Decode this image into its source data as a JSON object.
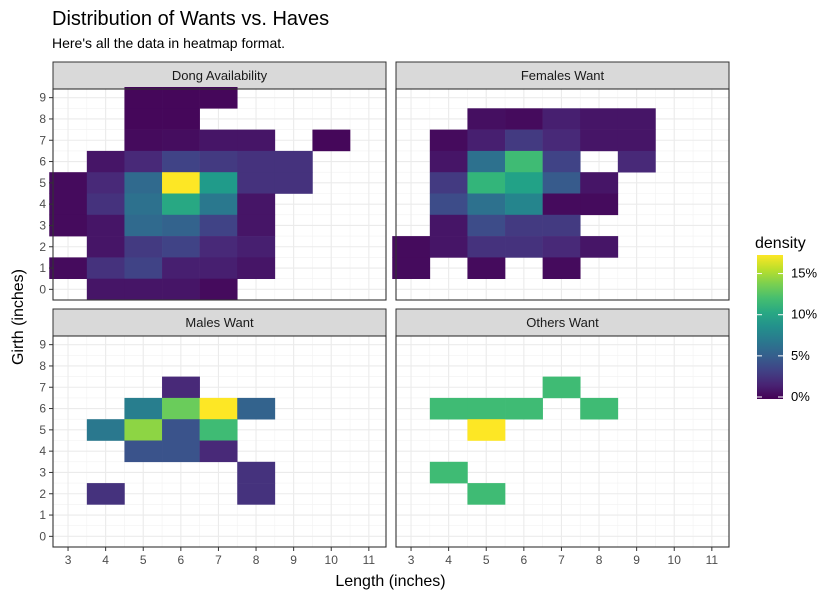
{
  "chart_data": {
    "type": "heatmap",
    "title": "Distribution of Wants vs. Haves",
    "subtitle": "Here's all the data in heatmap format.",
    "xlabel": "Length (inches)",
    "ylabel": "Girth (inches)",
    "xlim": [
      3,
      11
    ],
    "ylim": [
      0,
      9
    ],
    "x_ticks": [
      "3",
      "4",
      "5",
      "6",
      "7",
      "8",
      "9",
      "10",
      "11"
    ],
    "y_ticks": [
      "0",
      "1",
      "2",
      "3",
      "4",
      "5",
      "6",
      "7",
      "8",
      "9"
    ],
    "grid": true,
    "color_scale": "viridis",
    "legend": {
      "title": "density",
      "position": "right",
      "max": 17.5,
      "labels": [
        "0%",
        "5%",
        "10%",
        "15%"
      ],
      "values": [
        0,
        5,
        10,
        15
      ]
    },
    "facets": [
      {
        "name": "Dong Availability",
        "cells": [
          [
            5,
            9,
            0.3
          ],
          [
            6,
            9,
            0.3
          ],
          [
            7,
            9,
            0.3
          ],
          [
            5,
            8,
            0.3
          ],
          [
            6,
            8,
            0.3
          ],
          [
            5,
            7,
            0.5
          ],
          [
            6,
            7,
            0.6
          ],
          [
            7,
            7,
            1.0
          ],
          [
            8,
            7,
            1.0
          ],
          [
            10,
            7,
            0.3
          ],
          [
            4,
            6,
            1.0
          ],
          [
            5,
            6,
            2.0
          ],
          [
            6,
            6,
            3.5
          ],
          [
            7,
            6,
            3.0
          ],
          [
            8,
            6,
            2.5
          ],
          [
            9,
            6,
            2.5
          ],
          [
            3,
            5,
            0.5
          ],
          [
            4,
            5,
            2.0
          ],
          [
            5,
            5,
            6.0
          ],
          [
            6,
            5,
            17.5
          ],
          [
            7,
            5,
            9.5
          ],
          [
            8,
            5,
            2.5
          ],
          [
            9,
            5,
            2.5
          ],
          [
            3,
            4,
            0.5
          ],
          [
            4,
            4,
            2.5
          ],
          [
            5,
            4,
            6.5
          ],
          [
            6,
            4,
            10.5
          ],
          [
            7,
            4,
            7.0
          ],
          [
            8,
            4,
            1.0
          ],
          [
            3,
            3,
            0.5
          ],
          [
            4,
            3,
            1.0
          ],
          [
            5,
            3,
            6.0
          ],
          [
            6,
            3,
            5.5
          ],
          [
            7,
            3,
            3.5
          ],
          [
            8,
            3,
            1.0
          ],
          [
            4,
            2,
            1.0
          ],
          [
            5,
            2,
            3.0
          ],
          [
            6,
            2,
            3.5
          ],
          [
            7,
            2,
            2.0
          ],
          [
            8,
            2,
            1.5
          ],
          [
            3,
            1,
            0.5
          ],
          [
            4,
            1,
            2.5
          ],
          [
            5,
            1,
            3.5
          ],
          [
            6,
            1,
            1.5
          ],
          [
            7,
            1,
            1.5
          ],
          [
            8,
            1,
            1.0
          ],
          [
            4,
            0,
            1.0
          ],
          [
            5,
            0,
            1.0
          ],
          [
            6,
            0,
            1.0
          ],
          [
            7,
            0,
            0.5
          ]
        ]
      },
      {
        "name": "Females Want",
        "cells": [
          [
            5,
            8,
            0.7
          ],
          [
            6,
            8,
            0.5
          ],
          [
            7,
            8,
            1.5
          ],
          [
            8,
            8,
            1.0
          ],
          [
            9,
            8,
            1.0
          ],
          [
            4,
            7,
            0.5
          ],
          [
            5,
            7,
            1.5
          ],
          [
            6,
            7,
            3.0
          ],
          [
            7,
            7,
            2.0
          ],
          [
            8,
            7,
            1.0
          ],
          [
            9,
            7,
            1.0
          ],
          [
            4,
            6,
            1.0
          ],
          [
            5,
            6,
            6.5
          ],
          [
            6,
            6,
            12.0
          ],
          [
            7,
            6,
            3.5
          ],
          [
            9,
            6,
            2.0
          ],
          [
            4,
            5,
            3.0
          ],
          [
            5,
            5,
            11.5
          ],
          [
            6,
            5,
            10.0
          ],
          [
            7,
            5,
            5.0
          ],
          [
            8,
            5,
            1.0
          ],
          [
            4,
            4,
            4.0
          ],
          [
            5,
            4,
            6.5
          ],
          [
            6,
            4,
            8.0
          ],
          [
            7,
            4,
            0.5
          ],
          [
            8,
            4,
            0.5
          ],
          [
            4,
            3,
            1.0
          ],
          [
            5,
            3,
            4.0
          ],
          [
            6,
            3,
            3.0
          ],
          [
            7,
            3,
            3.0
          ],
          [
            3,
            2,
            0.5
          ],
          [
            4,
            2,
            1.0
          ],
          [
            5,
            2,
            2.5
          ],
          [
            6,
            2,
            2.5
          ],
          [
            7,
            2,
            2.0
          ],
          [
            8,
            2,
            1.0
          ],
          [
            3,
            1,
            0.5
          ],
          [
            5,
            1,
            0.5
          ],
          [
            7,
            1,
            0.5
          ]
        ]
      },
      {
        "name": "Males Want",
        "cells": [
          [
            6,
            7,
            2.0
          ],
          [
            5,
            6,
            7.5
          ],
          [
            6,
            6,
            13.5
          ],
          [
            7,
            6,
            17.5
          ],
          [
            8,
            6,
            5.5
          ],
          [
            4,
            5,
            7.0
          ],
          [
            5,
            5,
            14.5
          ],
          [
            6,
            5,
            4.5
          ],
          [
            7,
            5,
            12.0
          ],
          [
            5,
            4,
            4.5
          ],
          [
            6,
            4,
            4.5
          ],
          [
            7,
            4,
            2.0
          ],
          [
            8,
            3,
            2.5
          ],
          [
            4,
            2,
            2.5
          ],
          [
            8,
            2,
            2.5
          ]
        ]
      },
      {
        "name": "Others Want",
        "cells": [
          [
            7,
            7,
            12.0
          ],
          [
            4,
            6,
            12.0
          ],
          [
            5,
            6,
            12.0
          ],
          [
            6,
            6,
            12.0
          ],
          [
            8,
            6,
            12.0
          ],
          [
            5,
            5,
            17.5
          ],
          [
            4,
            3,
            12.0
          ],
          [
            5,
            2,
            12.0
          ]
        ]
      }
    ]
  }
}
